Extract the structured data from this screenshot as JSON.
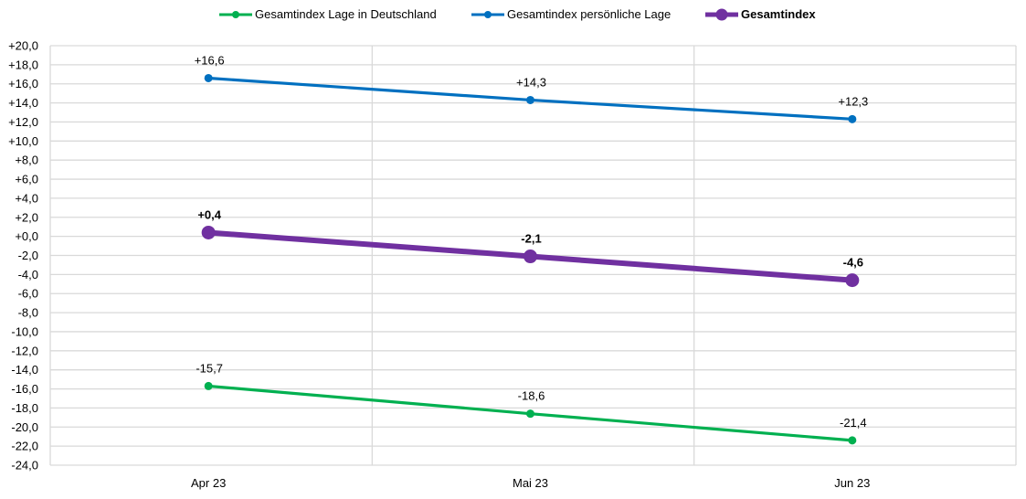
{
  "legend": {
    "items": [
      {
        "label": "Gesamtindex Lage in Deutschland",
        "color": "#00B050",
        "bold": false
      },
      {
        "label": "Gesamtindex persönliche Lage",
        "color": "#0070C0",
        "bold": false
      },
      {
        "label": "Gesamtindex",
        "color": "#7030A0",
        "bold": true
      }
    ]
  },
  "chart_data": {
    "type": "line",
    "title": "",
    "xlabel": "",
    "ylabel": "",
    "categories": [
      "Apr 23",
      "Mai 23",
      "Jun 23"
    ],
    "ylim": [
      -24,
      20
    ],
    "ytick_step": 2,
    "ytick_labels": [
      "+20,0",
      "+18,0",
      "+16,0",
      "+14,0",
      "+12,0",
      "+10,0",
      "+8,0",
      "+6,0",
      "+4,0",
      "+2,0",
      "+0,0",
      "-2,0",
      "-4,0",
      "-6,0",
      "-8,0",
      "-10,0",
      "-12,0",
      "-14,0",
      "-16,0",
      "-18,0",
      "-20,0",
      "-22,0",
      "-24,0"
    ],
    "grid": {
      "horizontal": true,
      "vertical": true
    },
    "legend_position": "top",
    "series": [
      {
        "name": "Gesamtindex Lage in Deutschland",
        "color": "#00B050",
        "values": [
          -15.7,
          -18.6,
          -21.4
        ],
        "labels": [
          "-15,7",
          "-18,6",
          "-21,4"
        ],
        "bold": false
      },
      {
        "name": "Gesamtindex persönliche Lage",
        "color": "#0070C0",
        "values": [
          16.6,
          14.3,
          12.3
        ],
        "labels": [
          "+16,6",
          "+14,3",
          "+12,3"
        ],
        "bold": false
      },
      {
        "name": "Gesamtindex",
        "color": "#7030A0",
        "values": [
          0.4,
          -2.1,
          -4.6
        ],
        "labels": [
          "+0,4",
          "-2,1",
          "-4,6"
        ],
        "bold": true
      }
    ]
  }
}
